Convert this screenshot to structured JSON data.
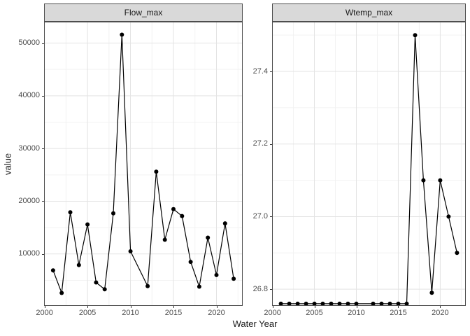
{
  "figure": {
    "xlabel": "Water Year",
    "ylabel": "value"
  },
  "style": {
    "strip_bg": "#d9d9d9",
    "panel_border": "#4d4d4d",
    "grid_major": "#e3e3e3",
    "grid_minor": "#f2f2f2",
    "line_color": "#000000",
    "point_color": "#000000",
    "tick_text_color": "#4d4d4d"
  },
  "chart_data": [
    {
      "type": "line",
      "title": "Flow_max",
      "xlabel": "Water Year",
      "ylabel": "value",
      "x": [
        2001,
        2002,
        2003,
        2004,
        2005,
        2006,
        2007,
        2008,
        2009,
        2010,
        2012,
        2013,
        2014,
        2015,
        2016,
        2017,
        2018,
        2019,
        2020,
        2021,
        2022
      ],
      "y": [
        6900,
        2600,
        17900,
        7900,
        15600,
        4600,
        3300,
        17700,
        51600,
        10500,
        3900,
        25600,
        12700,
        18500,
        17200,
        8500,
        3800,
        13100,
        6000,
        15800,
        5300
      ],
      "xlim": [
        1999.95,
        2023.05
      ],
      "ylim": [
        150,
        54050
      ],
      "x_major": [
        2000,
        2005,
        2010,
        2015,
        2020
      ],
      "x_minor": [
        2002.5,
        2007.5,
        2012.5,
        2017.5,
        2022.5
      ],
      "y_major": [
        10000,
        20000,
        30000,
        40000,
        50000
      ],
      "y_minor": [
        5000,
        15000,
        25000,
        35000,
        45000
      ],
      "x_tick_labels": [
        "2000",
        "2005",
        "2010",
        "2015",
        "2020"
      ],
      "y_tick_labels": [
        "10000",
        "20000",
        "30000",
        "40000",
        "50000"
      ],
      "grid": true,
      "legend": "none"
    },
    {
      "type": "line",
      "title": "Wtemp_max",
      "xlabel": "Water Year",
      "ylabel": "value",
      "x": [
        2001,
        2002,
        2003,
        2004,
        2005,
        2006,
        2007,
        2008,
        2009,
        2010,
        2012,
        2013,
        2014,
        2015,
        2016,
        2017,
        2018,
        2019,
        2020,
        2021,
        2022
      ],
      "y": [
        26.76,
        26.76,
        26.76,
        26.76,
        26.76,
        26.76,
        26.76,
        26.76,
        26.76,
        26.76,
        26.76,
        26.76,
        26.76,
        26.76,
        26.76,
        27.5,
        27.1,
        26.79,
        27.1,
        27.0,
        26.9
      ],
      "xlim": [
        1999.95,
        2023.05
      ],
      "ylim": [
        26.754,
        27.537
      ],
      "x_major": [
        2000,
        2005,
        2010,
        2015,
        2020
      ],
      "x_minor": [
        2002.5,
        2007.5,
        2012.5,
        2017.5,
        2022.5
      ],
      "y_major": [
        26.8,
        27.0,
        27.2,
        27.4
      ],
      "y_minor": [
        26.9,
        27.1,
        27.3,
        27.5
      ],
      "x_tick_labels": [
        "2000",
        "2005",
        "2010",
        "2015",
        "2020"
      ],
      "y_tick_labels": [
        "26.8",
        "27.0",
        "27.2",
        "27.4"
      ],
      "grid": true,
      "legend": "none"
    }
  ]
}
